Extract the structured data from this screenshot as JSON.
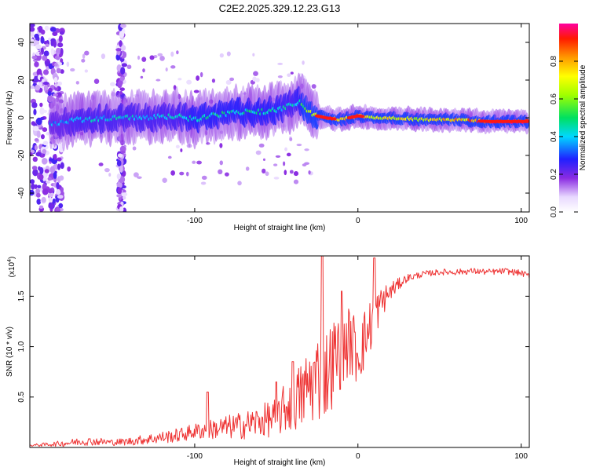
{
  "title": "C2E2.2025.329.12.23.G13",
  "colors": {
    "snr_line": "#ee3333",
    "axis": "#000000"
  },
  "chart_data": [
    {
      "type": "heatmap",
      "title": "C2E2.2025.329.12.23.G13",
      "xlabel": "Height of straight line (km)",
      "ylabel": "Frequency (Hz)",
      "xlim": [
        -201,
        105
      ],
      "ylim": [
        -50,
        50
      ],
      "xticks": [
        -100,
        0,
        100
      ],
      "xtick_labels": [
        "-100",
        "0",
        "100"
      ],
      "yticks": [
        -40,
        -20,
        0,
        20,
        40
      ],
      "ytick_labels": [
        "-40",
        "-20",
        "0",
        "20",
        "40"
      ],
      "colorbar": {
        "label": "Normalized spectral amplitude",
        "range": [
          0.0,
          1.0
        ],
        "ticks": [
          0.0,
          0.2,
          0.4,
          0.6,
          0.8
        ],
        "tick_labels": [
          "0.0",
          "0.2",
          "0.4",
          "0.6",
          "0.8"
        ]
      },
      "ridge_x_km": [
        -185,
        -170,
        -150,
        -130,
        -110,
        -100,
        -90,
        -80,
        -70,
        -60,
        -50,
        -40,
        -35,
        -30,
        -25,
        -20,
        -10,
        0,
        10,
        20,
        40,
        60,
        80,
        100
      ],
      "ridge_freq_hz": [
        -3,
        -1,
        0,
        0,
        1,
        -1,
        1,
        2,
        3,
        3,
        4,
        7,
        9,
        3,
        1,
        0,
        -1,
        1,
        0,
        0,
        -1,
        -1,
        -2,
        -2
      ],
      "ridge_amplitude": [
        0.35,
        0.4,
        0.4,
        0.4,
        0.4,
        0.45,
        0.45,
        0.45,
        0.45,
        0.45,
        0.45,
        0.4,
        0.45,
        0.6,
        0.75,
        0.85,
        0.8,
        0.85,
        0.65,
        0.7,
        0.7,
        0.75,
        0.9,
        1.0
      ]
    },
    {
      "type": "line",
      "xlabel": "Height of straight line (km)",
      "ylabel": "SNR (10 * v/v)",
      "y_multiplier_label": "(x10",
      "y_multiplier_exp": "4",
      "xlim": [
        -201,
        105
      ],
      "ylim": [
        0,
        1.9
      ],
      "xticks": [
        -100,
        0,
        100
      ],
      "xtick_labels": [
        "-100",
        "0",
        "100"
      ],
      "yticks": [
        0.5,
        1.0,
        1.5
      ],
      "ytick_labels": [
        "0.5",
        "1.0",
        "1.5"
      ],
      "series": [
        {
          "name": "SNR",
          "x": [
            -201,
            -190,
            -180,
            -170,
            -160,
            -150,
            -140,
            -130,
            -120,
            -110,
            -100,
            -90,
            -80,
            -70,
            -60,
            -50,
            -45,
            -40,
            -35,
            -30,
            -25,
            -20,
            -15,
            -10,
            -5,
            0,
            5,
            10,
            15,
            20,
            25,
            30,
            40,
            50,
            60,
            70,
            80,
            90,
            100,
            105
          ],
          "y": [
            0.02,
            0.03,
            0.04,
            0.06,
            0.06,
            0.05,
            0.06,
            0.08,
            0.1,
            0.12,
            0.16,
            0.18,
            0.2,
            0.22,
            0.26,
            0.3,
            0.38,
            0.45,
            0.5,
            0.62,
            0.7,
            0.72,
            0.85,
            1.0,
            1.05,
            0.95,
            1.1,
            1.3,
            1.45,
            1.55,
            1.62,
            1.68,
            1.72,
            1.74,
            1.74,
            1.75,
            1.74,
            1.75,
            1.73,
            1.7
          ],
          "noise": [
            0.01,
            0.02,
            0.03,
            0.04,
            0.04,
            0.03,
            0.04,
            0.05,
            0.06,
            0.07,
            0.08,
            0.1,
            0.12,
            0.14,
            0.16,
            0.2,
            0.25,
            0.3,
            0.35,
            0.4,
            0.45,
            0.45,
            0.45,
            0.4,
            0.35,
            0.35,
            0.3,
            0.25,
            0.15,
            0.1,
            0.06,
            0.04,
            0.03,
            0.03,
            0.03,
            0.03,
            0.03,
            0.03,
            0.03,
            0.03
          ],
          "spikes_x": [
            -92,
            -50,
            -40,
            -22,
            -10,
            10
          ],
          "spikes_y": [
            0.55,
            0.65,
            0.85,
            1.9,
            1.55,
            1.88
          ]
        }
      ]
    }
  ]
}
